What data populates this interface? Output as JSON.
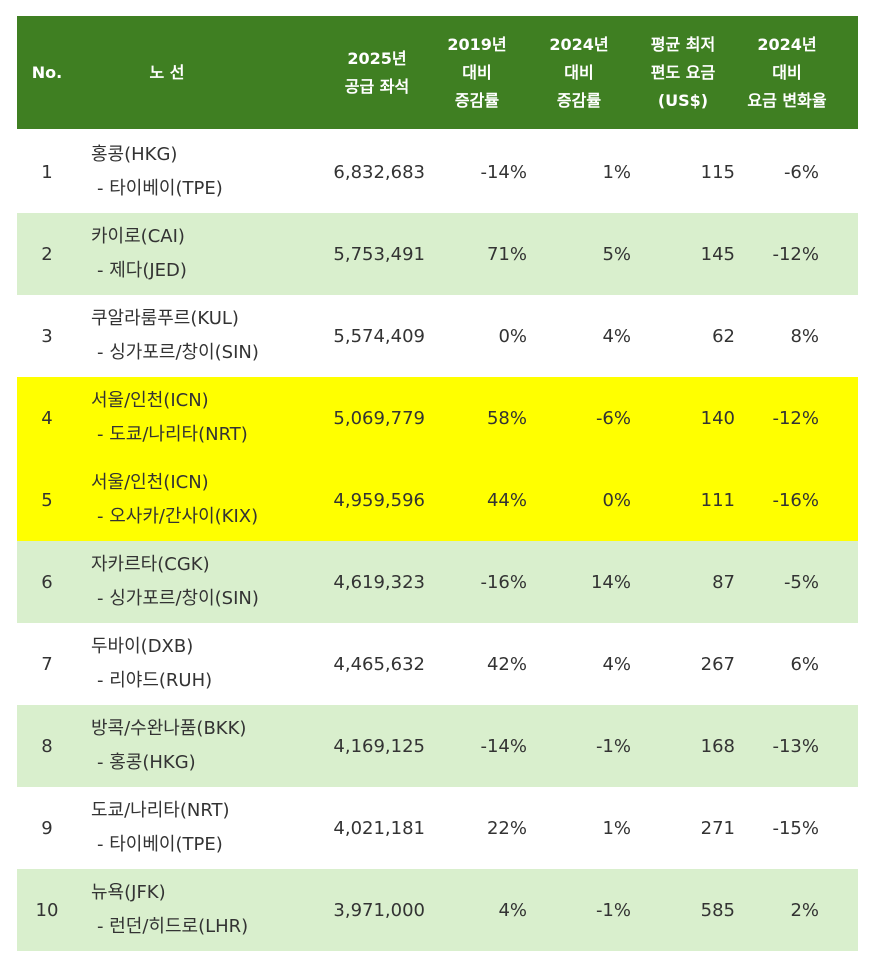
{
  "header": {
    "no": "No.",
    "route": "노 선",
    "seats": "2025년\n공급 좌석",
    "rate_2019": "2019년\n대비\n증감률",
    "rate_2024": "2024년\n대비\n증감률",
    "fare": "평균 최저\n편도 요금\n(US$)",
    "fare_change": "2024년\n대비\n요금 변화율"
  },
  "rows": [
    {
      "no": "1",
      "route1": "홍콩(HKG)",
      "route2": "- 타이베이(TPE)",
      "seats": "6,832,683",
      "rate_2019": "-14%",
      "rate_2024": "1%",
      "fare": "115",
      "fare_change": "-6%",
      "highlight": "white"
    },
    {
      "no": "2",
      "route1": "카이로(CAI)",
      "route2": "- 제다(JED)",
      "seats": "5,753,491",
      "rate_2019": "71%",
      "rate_2024": "5%",
      "fare": "145",
      "fare_change": "-12%",
      "highlight": "green"
    },
    {
      "no": "3",
      "route1": "쿠알라룸푸르(KUL)",
      "route2": "- 싱가포르/창이(SIN)",
      "seats": "5,574,409",
      "rate_2019": "0%",
      "rate_2024": "4%",
      "fare": "62",
      "fare_change": "8%",
      "highlight": "white"
    },
    {
      "no": "4",
      "route1": "서울/인천(ICN)",
      "route2": "- 도쿄/나리타(NRT)",
      "seats": "5,069,779",
      "rate_2019": "58%",
      "rate_2024": "-6%",
      "fare": "140",
      "fare_change": "-12%",
      "highlight": "yellow"
    },
    {
      "no": "5",
      "route1": "서울/인천(ICN)",
      "route2": "- 오사카/간사이(KIX)",
      "seats": "4,959,596",
      "rate_2019": "44%",
      "rate_2024": "0%",
      "fare": "111",
      "fare_change": "-16%",
      "highlight": "yellow"
    },
    {
      "no": "6",
      "route1": "자카르타(CGK)",
      "route2": "- 싱가포르/창이(SIN)",
      "seats": "4,619,323",
      "rate_2019": "-16%",
      "rate_2024": "14%",
      "fare": "87",
      "fare_change": "-5%",
      "highlight": "green"
    },
    {
      "no": "7",
      "route1": "두바이(DXB)",
      "route2": "- 리야드(RUH)",
      "seats": "4,465,632",
      "rate_2019": "42%",
      "rate_2024": "4%",
      "fare": "267",
      "fare_change": "6%",
      "highlight": "white"
    },
    {
      "no": "8",
      "route1": "방콕/수완나품(BKK)",
      "route2": "- 홍콩(HKG)",
      "seats": "4,169,125",
      "rate_2019": "-14%",
      "rate_2024": "-1%",
      "fare": "168",
      "fare_change": "-13%",
      "highlight": "green"
    },
    {
      "no": "9",
      "route1": "도쿄/나리타(NRT)",
      "route2": "- 타이베이(TPE)",
      "seats": "4,021,181",
      "rate_2019": "22%",
      "rate_2024": "1%",
      "fare": "271",
      "fare_change": "-15%",
      "highlight": "white"
    },
    {
      "no": "10",
      "route1": "뉴욕(JFK)",
      "route2": "- 런던/히드로(LHR)",
      "seats": "3,971,000",
      "rate_2019": "4%",
      "rate_2024": "-1%",
      "fare": "585",
      "fare_change": "2%",
      "highlight": "green"
    }
  ],
  "colors": {
    "header_bg": "#3f7f22",
    "header_text": "#ffffff",
    "row_green": "#d9efcd",
    "row_yellow": "#ffff00",
    "row_white": "#ffffff"
  }
}
